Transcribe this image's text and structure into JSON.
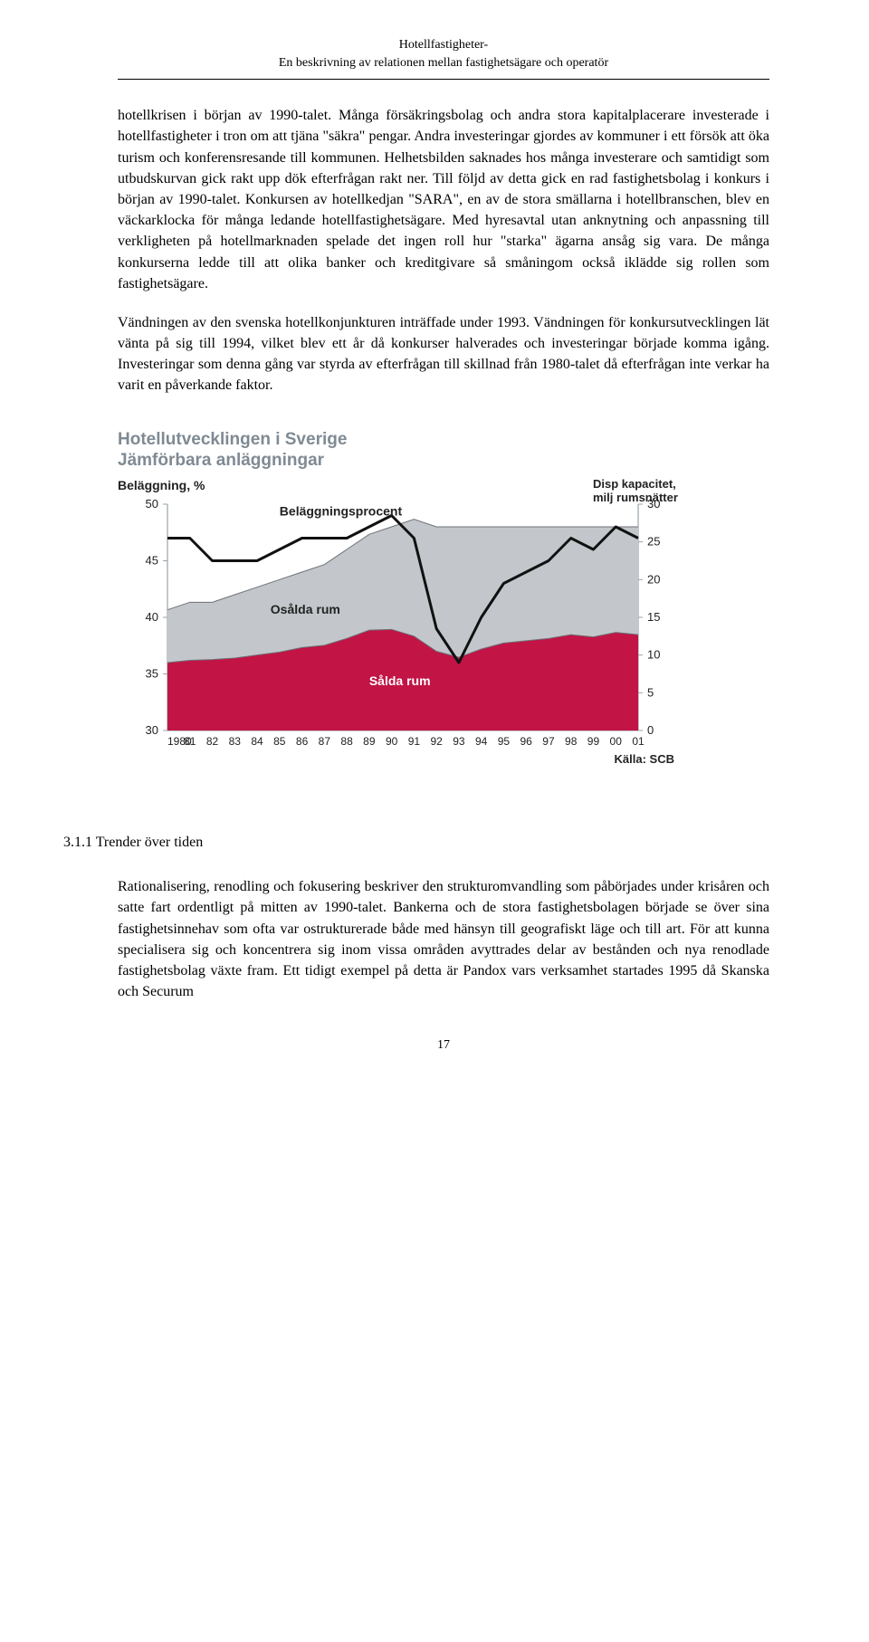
{
  "header": {
    "line1": "Hotellfastigheter-",
    "line2": "En beskrivning av relationen mellan fastighetsägare och operatör"
  },
  "para1": "hotellkrisen i början av 1990-talet. Många försäkringsbolag och andra stora kapitalplacerare investerade i hotellfastigheter i tron om att tjäna \"säkra\" pengar. Andra investeringar gjordes av kommuner i ett försök att öka turism och konferensresande till kommunen. Helhetsbilden saknades hos många investerare och samtidigt som utbudskurvan gick rakt upp dök efterfrågan rakt ner. Till följd av detta gick en rad fastighetsbolag i konkurs i början av 1990-talet. Konkursen av hotellkedjan \"SARA\", en av de stora smällarna i hotellbranschen, blev en väckarklocka för många ledande hotellfastighetsägare. Med hyresavtal utan anknytning och anpassning till verkligheten på hotellmarknaden spelade det ingen roll hur \"starka\" ägarna ansåg sig vara. De många konkurserna ledde till att olika banker och kreditgivare så småningom också iklädde sig rollen som fastighetsägare.",
  "para2": "Vändningen av den svenska hotellkonjunkturen inträffade under 1993. Vändningen för konkursutvecklingen lät vänta på sig till 1994, vilket blev ett år då konkurser halverades och investeringar började komma igång. Investeringar som denna gång var styrda av efterfrågan till skillnad från 1980-talet då efterfrågan inte verkar ha varit en påverkande faktor.",
  "chart": {
    "title_line1": "Hotellutvecklingen i Sverige",
    "title_line2": "Jämförbara anläggningar",
    "left_axis_label": "Beläggning, %",
    "right_axis_label_line1": "Disp kapacitet,",
    "right_axis_label_line2": "milj rumsnätter",
    "source": "Källa: SCB",
    "left_ticks": [
      30,
      35,
      40,
      45,
      50
    ],
    "right_ticks": [
      0,
      5,
      10,
      15,
      20,
      25,
      30
    ],
    "x_labels": [
      "1980",
      "81",
      "82",
      "83",
      "84",
      "85",
      "86",
      "87",
      "88",
      "89",
      "90",
      "91",
      "92",
      "93",
      "94",
      "95",
      "96",
      "97",
      "98",
      "99",
      "00",
      "01"
    ],
    "series_line_label": "Beläggningsprocent",
    "series_mid_label": "Osålda rum",
    "series_low_label": "Sålda rum",
    "colors": {
      "chart_border": "#9aa3ab",
      "grid": "#c0c6cc",
      "line": "#111111",
      "osalda_fill": "#c3c7cb",
      "salda_fill": "#c21445",
      "text_axis": "#222222",
      "title": "#7f8a93"
    },
    "belaggning_pct": [
      47,
      47,
      45,
      45,
      45,
      46,
      47,
      47,
      47,
      48,
      49,
      47,
      39,
      36,
      40,
      43,
      44,
      45,
      47,
      46,
      48,
      47
    ],
    "rumsnatter_totals": [
      16,
      17,
      17,
      18,
      19,
      20,
      21,
      22,
      24,
      26,
      27,
      28,
      27,
      27,
      27,
      27,
      27,
      27,
      27,
      27,
      27,
      27
    ],
    "salda": [
      9.0,
      9.3,
      9.4,
      9.6,
      10.0,
      10.4,
      11.0,
      11.3,
      12.2,
      13.3,
      13.4,
      12.5,
      10.5,
      9.7,
      10.8,
      11.6,
      11.9,
      12.2,
      12.7,
      12.4,
      13.0,
      12.7
    ]
  },
  "section": {
    "number": "3.1.1",
    "title": "Trender över tiden"
  },
  "para3": "Rationalisering, renodling och fokusering beskriver den strukturomvandling som påbörjades under krisåren och satte fart ordentligt på mitten av 1990-talet. Bankerna och de stora fastighetsbolagen började se över sina fastighetsinnehav som ofta var ostrukturerade både med hänsyn till geografiskt läge och till art. För att kunna specialisera sig och koncentrera sig inom vissa områden avyttrades delar av bestånden och nya renodlade fastighetsbolag växte fram. Ett tidigt exempel på detta är Pandox vars verksamhet startades 1995 då Skanska och Securum",
  "page_number": "17"
}
